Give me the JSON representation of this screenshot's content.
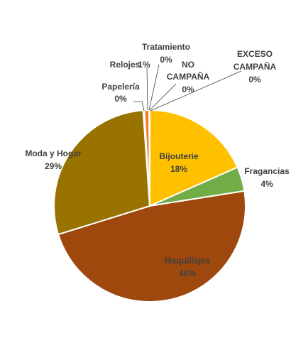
{
  "chart_data": {
    "type": "pie",
    "title": "",
    "slices": [
      {
        "name": "Bijouterie",
        "pct_label": "18%",
        "value": 18.4,
        "color": "#FFC000"
      },
      {
        "name": "Fragancias",
        "pct_label": "4%",
        "value": 4.1,
        "color": "#70AD47"
      },
      {
        "name": "Maquillajes",
        "pct_label": "48%",
        "value": 47.7,
        "color": "#9E480E"
      },
      {
        "name": "Moda y Hogar",
        "pct_label": "29%",
        "value": 28.7,
        "color": "#997300"
      },
      {
        "name": "Papelería",
        "pct_label": "0%",
        "value": 0.2,
        "color": "#C9C9C9"
      },
      {
        "name": "Relojes",
        "pct_label": "1%",
        "value": 0.8,
        "color": "#ED7D31"
      },
      {
        "name": "Tratamiento",
        "pct_label": "0%",
        "value": 0.05,
        "color": "#5B9BD5"
      },
      {
        "name": "NO CAMPAÑA",
        "pct_label": "0%",
        "value": 0.03,
        "color": "#264478"
      },
      {
        "name": "EXCESO CAMPAÑA",
        "pct_label": "0%",
        "value": 0.02,
        "color": "#636363"
      }
    ]
  }
}
